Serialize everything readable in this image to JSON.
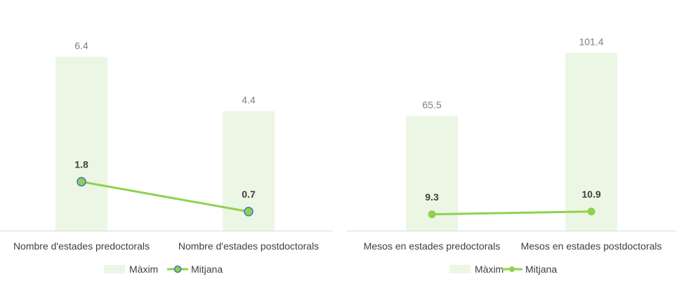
{
  "chart_data": [
    {
      "type": "bar",
      "categories": [
        "Nombre d'estades predoctorals",
        "Nombre d'estades postdoctorals"
      ],
      "series": [
        {
          "name": "Màxim",
          "type": "bar",
          "values": [
            6.4,
            4.4
          ],
          "labels": [
            "6.4",
            "4.4"
          ]
        },
        {
          "name": "Mitjana",
          "type": "line",
          "values": [
            1.8,
            0.7
          ],
          "labels": [
            "1.8",
            "0.7"
          ]
        }
      ],
      "ylim": [
        0,
        7.1
      ],
      "grid": false,
      "legend": "bottom",
      "marker": "circle-blue-edge",
      "colors": {
        "bar": "#ecf6e4",
        "line": "#8fd14f",
        "marker_fill": "#8fd14f",
        "marker_edge": "#4472c4",
        "axis": "#d9d9d9"
      }
    },
    {
      "type": "bar",
      "categories": [
        "Mesos en estades predoctorals",
        "Mesos en estades postdoctorals"
      ],
      "series": [
        {
          "name": "Màxim",
          "type": "bar",
          "values": [
            65.5,
            101.4
          ],
          "labels": [
            "65.5",
            "101.4"
          ]
        },
        {
          "name": "Mitjana",
          "type": "line",
          "values": [
            9.3,
            10.9
          ],
          "labels": [
            "9.3",
            "10.9"
          ]
        }
      ],
      "ylim": [
        0,
        110
      ],
      "grid": false,
      "legend": "bottom",
      "marker": "circle",
      "colors": {
        "bar": "#ecf6e4",
        "line": "#8fd14f",
        "marker_fill": "#8fd14f",
        "marker_edge": "#8fd14f",
        "axis": "#d9d9d9"
      }
    }
  ]
}
